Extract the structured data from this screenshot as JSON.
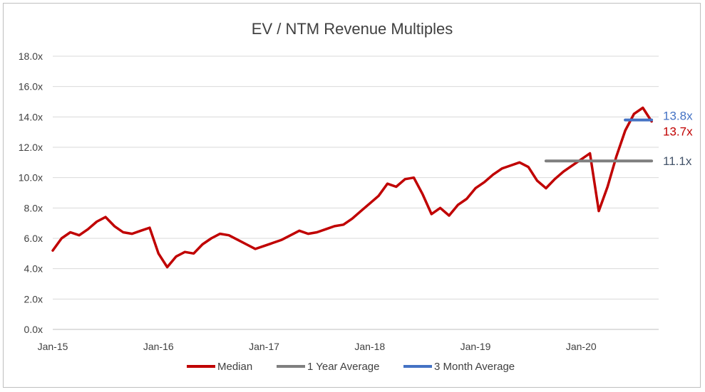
{
  "chart_data": {
    "type": "line",
    "title": "EV / NTM Revenue Multiples",
    "xlabel": "",
    "ylabel": "",
    "ylim": [
      0,
      18
    ],
    "y_ticks": [
      "0.0x",
      "2.0x",
      "4.0x",
      "6.0x",
      "8.0x",
      "10.0x",
      "12.0x",
      "14.0x",
      "16.0x",
      "18.0x"
    ],
    "x_ticks": [
      "Jan-15",
      "Jan-16",
      "Jan-17",
      "Jan-18",
      "Jan-19",
      "Jan-20"
    ],
    "x_range": [
      "2015-01",
      "2020-09"
    ],
    "grid": true,
    "legend_position": "bottom",
    "series": [
      {
        "name": "Median",
        "color": "#c00000",
        "x": [
          "2015-01",
          "2015-02",
          "2015-03",
          "2015-04",
          "2015-05",
          "2015-06",
          "2015-07",
          "2015-08",
          "2015-09",
          "2015-10",
          "2015-11",
          "2015-12",
          "2016-01",
          "2016-02",
          "2016-03",
          "2016-04",
          "2016-05",
          "2016-06",
          "2016-07",
          "2016-08",
          "2016-09",
          "2016-10",
          "2016-11",
          "2016-12",
          "2017-01",
          "2017-02",
          "2017-03",
          "2017-04",
          "2017-05",
          "2017-06",
          "2017-07",
          "2017-08",
          "2017-09",
          "2017-10",
          "2017-11",
          "2017-12",
          "2018-01",
          "2018-02",
          "2018-03",
          "2018-04",
          "2018-05",
          "2018-06",
          "2018-07",
          "2018-08",
          "2018-09",
          "2018-10",
          "2018-11",
          "2018-12",
          "2019-01",
          "2019-02",
          "2019-03",
          "2019-04",
          "2019-05",
          "2019-06",
          "2019-07",
          "2019-08",
          "2019-09",
          "2019-10",
          "2019-11",
          "2019-12",
          "2020-01",
          "2020-02",
          "2020-03",
          "2020-04",
          "2020-05",
          "2020-06",
          "2020-07",
          "2020-08",
          "2020-09"
        ],
        "values": [
          5.2,
          6.0,
          6.4,
          6.2,
          6.6,
          7.1,
          7.4,
          6.8,
          6.4,
          6.3,
          6.5,
          6.7,
          5.0,
          4.1,
          4.8,
          5.1,
          5.0,
          5.6,
          6.0,
          6.3,
          6.2,
          5.9,
          5.6,
          5.3,
          5.5,
          5.7,
          5.9,
          6.2,
          6.5,
          6.3,
          6.4,
          6.6,
          6.8,
          6.9,
          7.3,
          7.8,
          8.3,
          8.8,
          9.6,
          9.4,
          9.9,
          10.0,
          8.9,
          7.6,
          8.0,
          7.5,
          8.2,
          8.6,
          9.3,
          9.7,
          10.2,
          10.6,
          10.8,
          11.0,
          10.7,
          9.8,
          9.3,
          9.9,
          10.4,
          10.8,
          11.2,
          11.6,
          7.8,
          9.4,
          11.4,
          13.1,
          14.2,
          14.6,
          13.7
        ]
      },
      {
        "name": "1 Year Average",
        "color": "#7f7f7f",
        "x": [
          "2019-09",
          "2020-09"
        ],
        "values": [
          11.1,
          11.1
        ]
      },
      {
        "name": "3 Month Average",
        "color": "#4472c4",
        "x": [
          "2020-06",
          "2020-09"
        ],
        "values": [
          13.8,
          13.8
        ]
      }
    ],
    "annotations": [
      {
        "text": "13.8x",
        "value": 13.8,
        "color": "#4472c4"
      },
      {
        "text": "13.7x",
        "value": 13.7,
        "color": "#c00000"
      },
      {
        "text": "11.1x",
        "value": 11.1,
        "color": "#44546a"
      }
    ]
  }
}
